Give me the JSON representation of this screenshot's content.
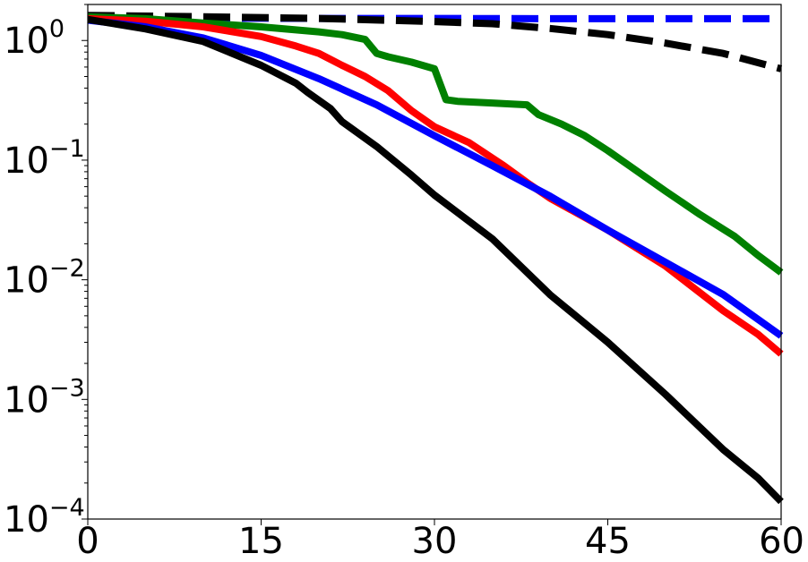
{
  "chart_data": {
    "type": "line",
    "title": "",
    "xlabel": "",
    "ylabel": "",
    "xlim": [
      0,
      60
    ],
    "ylim": [
      0.0001,
      2
    ],
    "yscale": "log",
    "grid": false,
    "legend": "none",
    "x_ticks": [
      {
        "value": 0,
        "label": "0"
      },
      {
        "value": 15,
        "label": "15"
      },
      {
        "value": 30,
        "label": "30"
      },
      {
        "value": 45,
        "label": "45"
      },
      {
        "value": 60,
        "label": "60"
      }
    ],
    "y_ticks": [
      {
        "value": 1,
        "base": "10",
        "exp": "0"
      },
      {
        "value": 0.1,
        "base": "10",
        "exp": "−1"
      },
      {
        "value": 0.01,
        "base": "10",
        "exp": "−2"
      },
      {
        "value": 0.001,
        "base": "10",
        "exp": "−3"
      },
      {
        "value": 0.0001,
        "base": "10",
        "exp": "−4"
      }
    ],
    "series": [
      {
        "color": "#0000ff",
        "style": "dashed",
        "points": [
          [
            0,
            1.55
          ],
          [
            10,
            1.54
          ],
          [
            20,
            1.53
          ],
          [
            30,
            1.53
          ],
          [
            40,
            1.52
          ],
          [
            50,
            1.52
          ],
          [
            60,
            1.52
          ]
        ]
      },
      {
        "color": "#000000",
        "style": "dashed",
        "points": [
          [
            0,
            1.62
          ],
          [
            10,
            1.58
          ],
          [
            20,
            1.53
          ],
          [
            30,
            1.44
          ],
          [
            35,
            1.38
          ],
          [
            40,
            1.26
          ],
          [
            45,
            1.12
          ],
          [
            50,
            0.95
          ],
          [
            55,
            0.78
          ],
          [
            60,
            0.58
          ]
        ]
      },
      {
        "color": "#008000",
        "style": "solid",
        "points": [
          [
            0,
            1.58
          ],
          [
            5,
            1.52
          ],
          [
            10,
            1.4
          ],
          [
            15,
            1.3
          ],
          [
            20,
            1.18
          ],
          [
            22,
            1.12
          ],
          [
            24,
            1.02
          ],
          [
            25,
            0.78
          ],
          [
            26,
            0.73
          ],
          [
            28,
            0.66
          ],
          [
            30,
            0.58
          ],
          [
            31,
            0.32
          ],
          [
            32,
            0.31
          ],
          [
            35,
            0.3
          ],
          [
            38,
            0.29
          ],
          [
            39,
            0.24
          ],
          [
            41,
            0.2
          ],
          [
            43,
            0.16
          ],
          [
            45,
            0.12
          ],
          [
            47,
            0.088
          ],
          [
            50,
            0.055
          ],
          [
            53,
            0.035
          ],
          [
            56,
            0.023
          ],
          [
            58,
            0.016
          ],
          [
            60,
            0.0115
          ]
        ]
      },
      {
        "color": "#ff0000",
        "style": "solid",
        "points": [
          [
            0,
            1.52
          ],
          [
            5,
            1.45
          ],
          [
            10,
            1.3
          ],
          [
            15,
            1.08
          ],
          [
            18,
            0.9
          ],
          [
            20,
            0.78
          ],
          [
            22,
            0.62
          ],
          [
            24,
            0.5
          ],
          [
            26,
            0.38
          ],
          [
            28,
            0.26
          ],
          [
            30,
            0.19
          ],
          [
            33,
            0.14
          ],
          [
            36,
            0.09
          ],
          [
            38,
            0.065
          ],
          [
            40,
            0.048
          ],
          [
            45,
            0.026
          ],
          [
            50,
            0.013
          ],
          [
            55,
            0.0055
          ],
          [
            58,
            0.0035
          ],
          [
            60,
            0.0024
          ]
        ]
      },
      {
        "color": "#0000ff",
        "style": "solid",
        "points": [
          [
            0,
            1.48
          ],
          [
            5,
            1.3
          ],
          [
            10,
            1.05
          ],
          [
            15,
            0.75
          ],
          [
            20,
            0.48
          ],
          [
            25,
            0.29
          ],
          [
            30,
            0.16
          ],
          [
            35,
            0.09
          ],
          [
            40,
            0.05
          ],
          [
            45,
            0.026
          ],
          [
            50,
            0.014
          ],
          [
            55,
            0.0075
          ],
          [
            60,
            0.0034
          ]
        ]
      },
      {
        "color": "#000000",
        "style": "solid",
        "points": [
          [
            0,
            1.5
          ],
          [
            5,
            1.25
          ],
          [
            10,
            0.98
          ],
          [
            15,
            0.62
          ],
          [
            18,
            0.44
          ],
          [
            19,
            0.37
          ],
          [
            21,
            0.27
          ],
          [
            22,
            0.21
          ],
          [
            25,
            0.13
          ],
          [
            28,
            0.075
          ],
          [
            30,
            0.051
          ],
          [
            35,
            0.022
          ],
          [
            40,
            0.0075
          ],
          [
            45,
            0.003
          ],
          [
            50,
            0.0011
          ],
          [
            55,
            0.00038
          ],
          [
            58,
            0.00022
          ],
          [
            60,
            0.00014
          ]
        ]
      }
    ]
  }
}
